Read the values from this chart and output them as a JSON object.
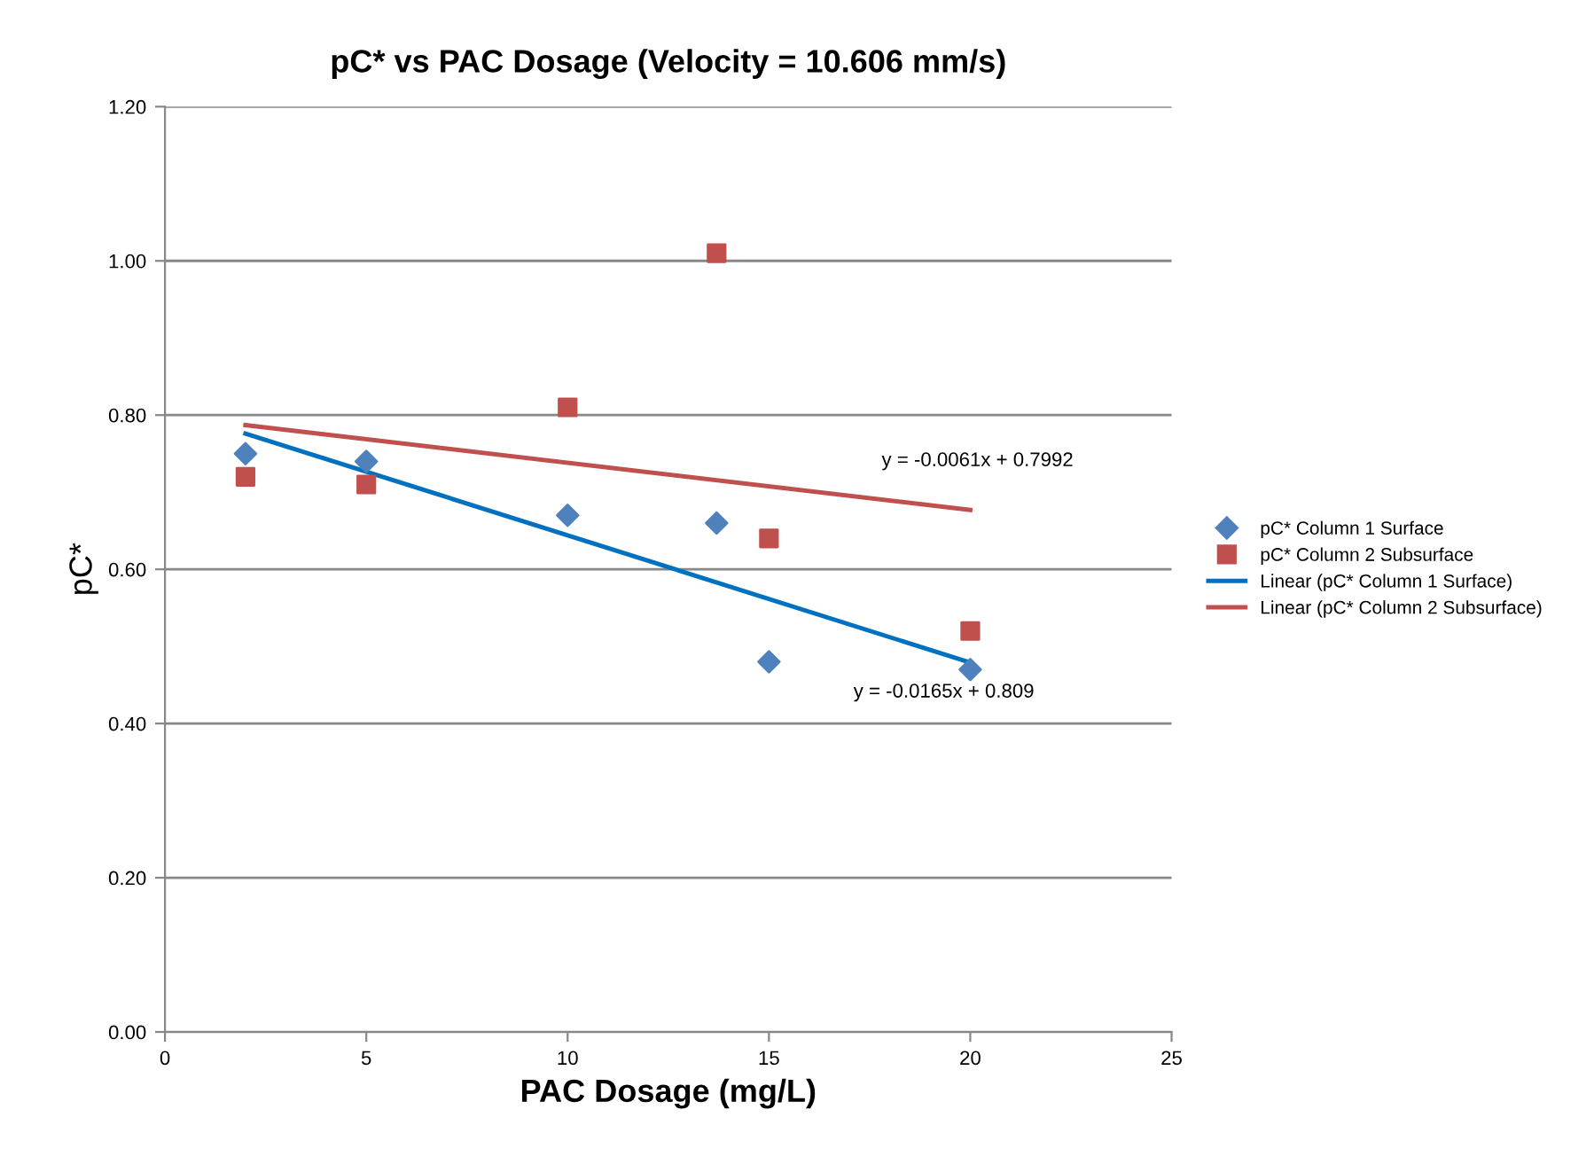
{
  "chart_data": {
    "type": "scatter",
    "title": "pC* vs PAC Dosage (Velocity = 10.606 mm/s)",
    "xlabel": "PAC Dosage (mg/L)",
    "ylabel": "pC*",
    "xlim": [
      0,
      25
    ],
    "xticks": [
      0,
      5,
      10,
      15,
      20,
      25
    ],
    "ylim": [
      0,
      1.2
    ],
    "yticks": [
      {
        "value": 0,
        "label": "0.00"
      },
      {
        "value": 0.2,
        "label": "0.20"
      },
      {
        "value": 0.4,
        "label": "0.40"
      },
      {
        "value": 0.6,
        "label": "0.60"
      },
      {
        "value": 0.8,
        "label": "0.80"
      },
      {
        "value": 1.0,
        "label": "1.00"
      },
      {
        "value": 1.2,
        "label": "1.20"
      }
    ],
    "grid": "y",
    "legend": "right",
    "series": [
      {
        "name": "pC* Column 1 Surface",
        "marker": "diamond",
        "color": "#4f81bd",
        "x": [
          2,
          5,
          10,
          13.7,
          15,
          20
        ],
        "values": [
          0.75,
          0.74,
          0.67,
          0.66,
          0.48,
          0.47
        ]
      },
      {
        "name": "pC* Column 2 Subsurface",
        "marker": "square",
        "color": "#c0504d",
        "x": [
          2,
          5,
          10,
          13.7,
          15,
          20
        ],
        "values": [
          0.72,
          0.71,
          0.81,
          1.01,
          0.64,
          0.52
        ]
      },
      {
        "name": "Linear (pC* Column 1 Surface)",
        "type": "line",
        "marker": "none",
        "color": "#0070c0",
        "x": [
          2,
          20
        ],
        "values": [
          0.776,
          0.479
        ]
      },
      {
        "name": "Linear (pC* Column 2 Subsurface)",
        "type": "line",
        "marker": "none",
        "color": "#c0504d",
        "x": [
          2,
          20
        ],
        "values": [
          0.787,
          0.677
        ]
      }
    ],
    "annotations": [
      "y = -0.0061x + 0.7992",
      "y = -0.0165x + 0.809"
    ]
  }
}
